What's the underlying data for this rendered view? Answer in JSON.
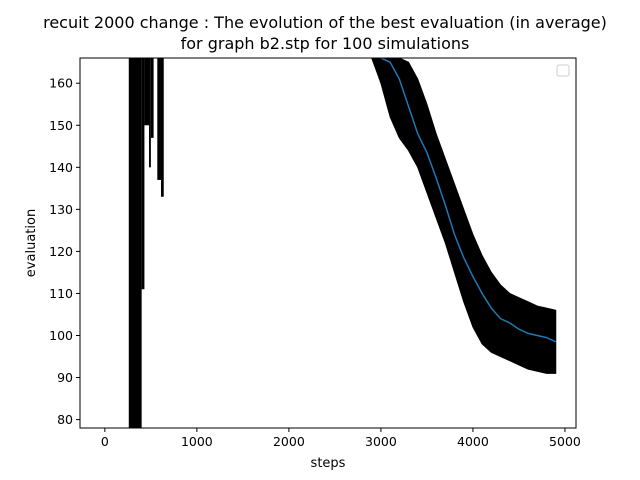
{
  "chart_data": {
    "type": "line",
    "title": "recuit 2000 change : The evolution of the best evaluation (in average)",
    "subtitle": "for graph b2.stp for 100 simulations",
    "xlabel": "steps",
    "ylabel": "evaluation",
    "xlim": [
      -270,
      5120
    ],
    "ylim": [
      78,
      166
    ],
    "xticks": [
      0,
      1000,
      2000,
      3000,
      4000,
      5000
    ],
    "yticks": [
      80,
      90,
      100,
      110,
      120,
      130,
      140,
      150,
      160
    ],
    "grid": false,
    "legend": {
      "location": "upper right",
      "entries": []
    },
    "colors": {
      "mean_line": "#1f77b4",
      "band": "#000000",
      "axes": "#000000"
    },
    "series": [
      {
        "role": "mean",
        "x": [
          3000,
          3100,
          3200,
          3300,
          3400,
          3500,
          3600,
          3700,
          3800,
          3900,
          4000,
          4100,
          4200,
          4300,
          4400,
          4500,
          4600,
          4700,
          4800,
          4900
        ],
        "values": [
          166,
          165,
          161,
          154.5,
          148,
          143.5,
          137.5,
          131,
          124,
          118.5,
          114,
          110,
          106.5,
          104,
          103,
          101.5,
          100.5,
          100,
          99.5,
          98.5
        ]
      },
      {
        "role": "mean_plus_std",
        "x": [
          2600,
          2700,
          2800,
          2900,
          3000,
          3100,
          3200,
          3300,
          3400,
          3500,
          3600,
          3700,
          3800,
          3900,
          4000,
          4100,
          4200,
          4300,
          4400,
          4500,
          4600,
          4700,
          4800,
          4900
        ],
        "values": [
          166,
          166,
          166,
          166,
          166,
          166,
          166,
          165,
          161,
          155,
          148,
          142,
          136,
          130,
          124,
          119,
          115,
          112,
          110,
          109,
          108,
          107,
          106.5,
          106
        ]
      },
      {
        "role": "mean_minus_std",
        "x": [
          2600,
          2700,
          2800,
          2900,
          3000,
          3100,
          3200,
          3300,
          3400,
          3500,
          3600,
          3700,
          3800,
          3900,
          4000,
          4100,
          4200,
          4300,
          4400,
          4500,
          4600,
          4700,
          4800,
          4900
        ],
        "values": [
          166,
          166,
          166,
          166,
          160,
          152,
          147,
          144,
          140,
          134,
          128,
          122,
          115,
          108,
          102,
          98,
          96,
          95,
          94,
          93,
          92,
          91.5,
          91,
          91
        ]
      }
    ],
    "early_bands": [
      {
        "x_from": 260,
        "x_to": 400,
        "y_low": 78,
        "y_high": 166
      },
      {
        "x_from": 400,
        "x_to": 430,
        "y_low": 111,
        "y_high": 166
      },
      {
        "x_from": 430,
        "x_to": 480,
        "y_low": 150,
        "y_high": 166
      },
      {
        "x_from": 480,
        "x_to": 500,
        "y_low": 140,
        "y_high": 166
      },
      {
        "x_from": 500,
        "x_to": 530,
        "y_low": 147,
        "y_high": 166
      },
      {
        "x_from": 570,
        "x_to": 610,
        "y_low": 137,
        "y_high": 166
      },
      {
        "x_from": 610,
        "x_to": 640,
        "y_low": 133,
        "y_high": 166
      }
    ]
  }
}
